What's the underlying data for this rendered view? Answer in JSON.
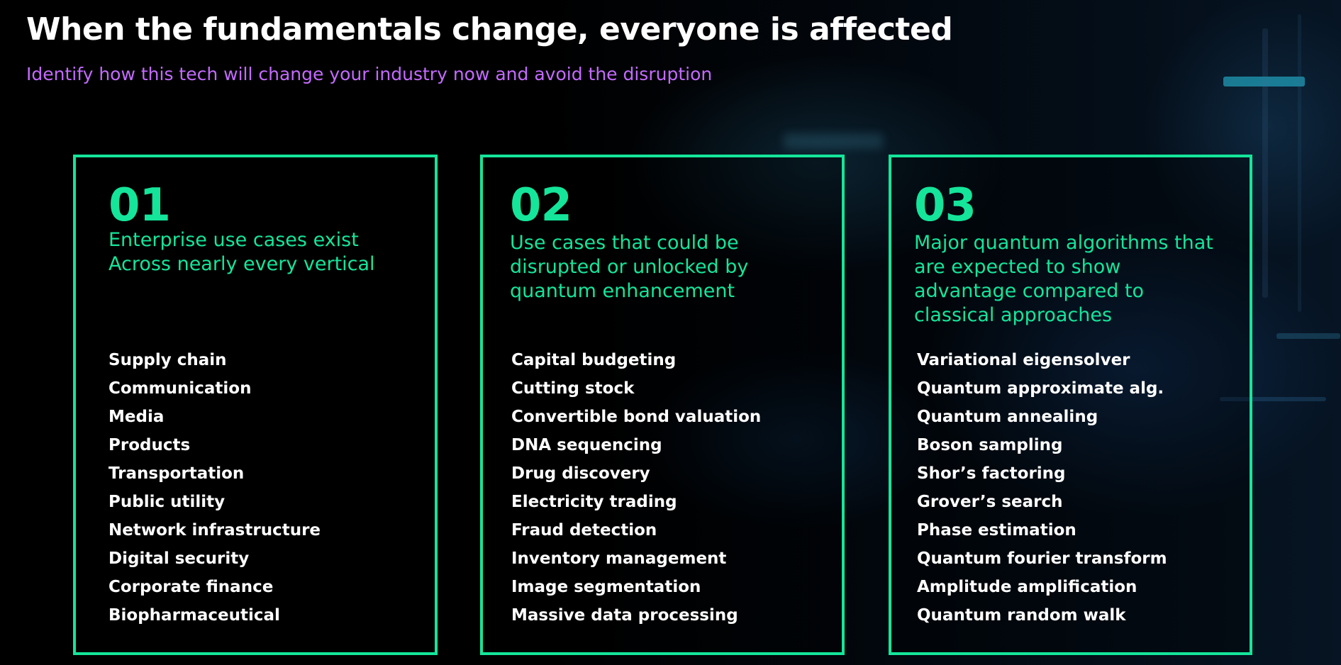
{
  "header": {
    "title": "When the fundamentals change, everyone is affected",
    "subtitle": "Identify how this tech will change your industry now and avoid the disruption"
  },
  "colors": {
    "accent": "#14e59a",
    "subtitle": "#c46bff",
    "text": "#ffffff",
    "background": "#000000"
  },
  "cards": [
    {
      "number": "01",
      "description_lines": [
        "Enterprise use cases exist",
        "Across nearly every vertical"
      ],
      "items": [
        "Supply chain",
        "Communication",
        "Media",
        "Products",
        "Transportation",
        "Public utility",
        "Network infrastructure",
        "Digital security",
        "Corporate finance",
        "Biopharmaceutical"
      ]
    },
    {
      "number": "02",
      "description_lines": [
        "Use cases that could be",
        "disrupted or unlocked by",
        "quantum enhancement"
      ],
      "items": [
        "Capital budgeting",
        "Cutting stock",
        "Convertible bond valuation",
        "DNA sequencing",
        "Drug discovery",
        "Electricity trading",
        "Fraud detection",
        "Inventory management",
        "Image segmentation",
        "Massive data processing"
      ]
    },
    {
      "number": "03",
      "description_lines": [
        "Major quantum algorithms that",
        "are expected to show",
        "advantage compared to",
        "classical approaches"
      ],
      "items": [
        "Variational eigensolver",
        "Quantum approximate alg.",
        "Quantum annealing",
        "Boson sampling",
        "Shor’s factoring",
        "Grover’s search",
        "Phase estimation",
        "Quantum fourier transform",
        "Amplitude amplification",
        "Quantum random walk"
      ]
    }
  ]
}
